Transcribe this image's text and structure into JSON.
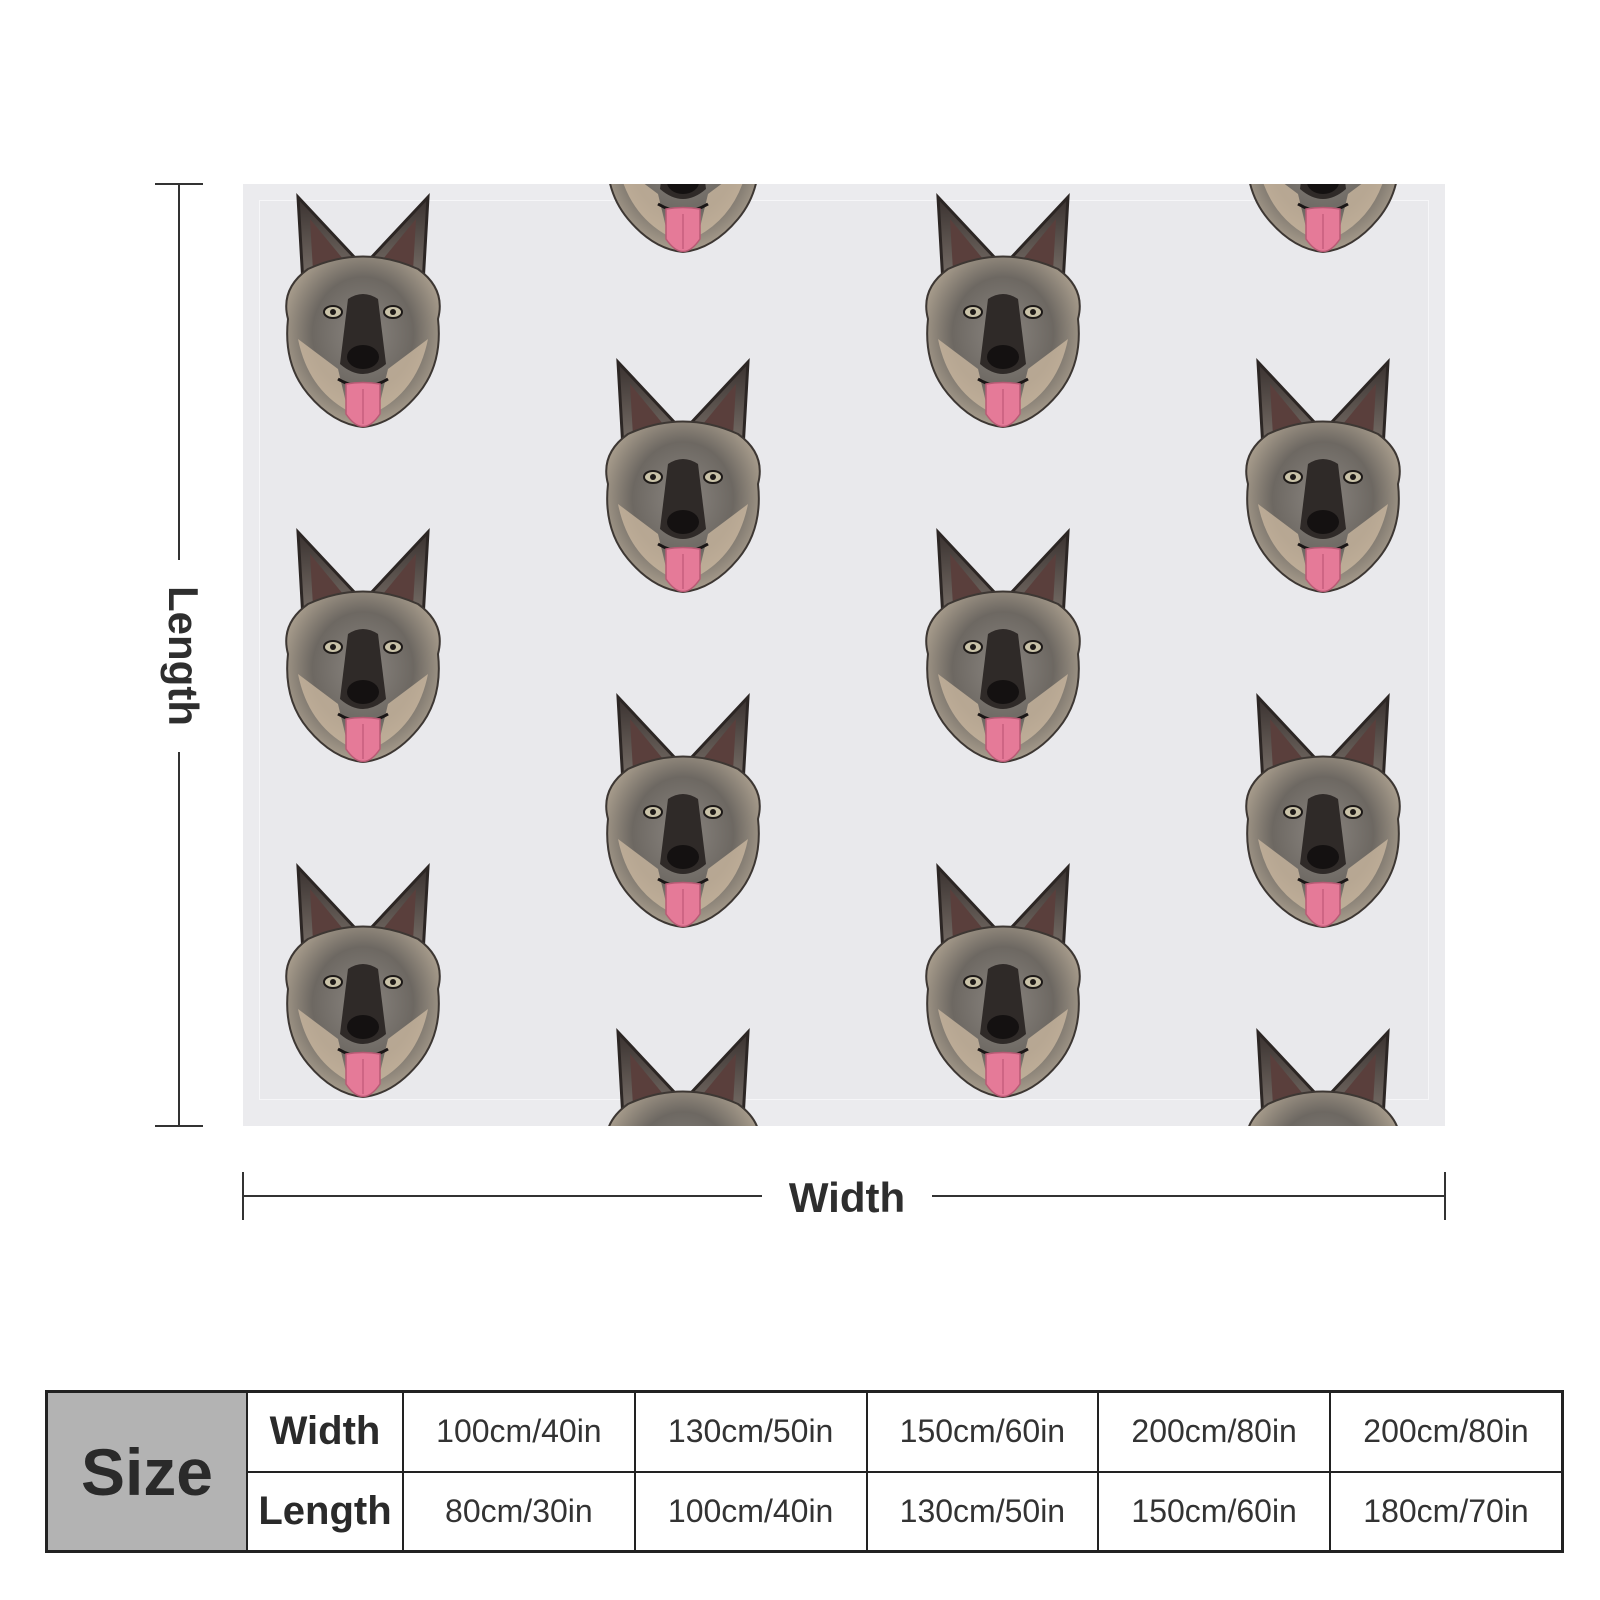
{
  "dimensions": {
    "length_label": "Length",
    "width_label": "Width"
  },
  "pattern": {
    "motif": "german-shepherd-head",
    "background_color": "#ebebee"
  },
  "size_table": {
    "title": "Size",
    "rows": [
      {
        "label": "Width",
        "values": [
          "100cm/40in",
          "130cm/50in",
          "150cm/60in",
          "200cm/80in",
          "200cm/80in"
        ]
      },
      {
        "label": "Length",
        "values": [
          "80cm/30in",
          "100cm/40in",
          "130cm/50in",
          "150cm/60in",
          "180cm/70in"
        ]
      }
    ]
  }
}
